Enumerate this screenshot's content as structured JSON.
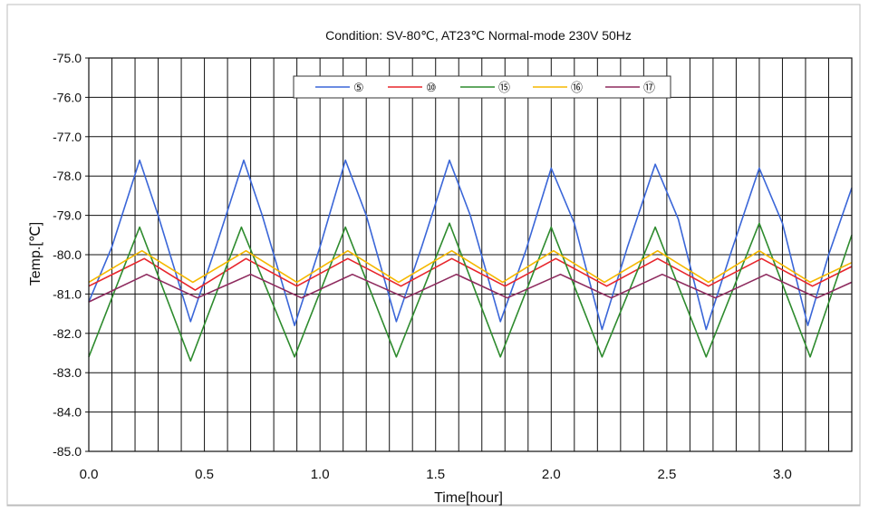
{
  "chart_data": {
    "type": "line",
    "title": "Condition: SV-80℃, AT23℃  Normal-mode   230V 50Hz",
    "xlabel": "Time[hour]",
    "ylabel": "Temp.[℃]",
    "xlim": [
      0.0,
      3.3
    ],
    "ylim": [
      -85.0,
      -75.0
    ],
    "x_ticks": [
      "0.0",
      "0.5",
      "1.0",
      "1.5",
      "2.0",
      "2.5",
      "3.0"
    ],
    "x_tick_values": [
      0,
      0.5,
      1.0,
      1.5,
      2.0,
      2.5,
      3.0
    ],
    "y_ticks": [
      "-75.0",
      "-76.0",
      "-77.0",
      "-78.0",
      "-79.0",
      "-80.0",
      "-81.0",
      "-82.0",
      "-83.0",
      "-84.0",
      "-85.0"
    ],
    "y_tick_values": [
      -75,
      -76,
      -77,
      -78,
      -79,
      -80,
      -81,
      -82,
      -83,
      -84,
      -85
    ],
    "grid": true,
    "legend_position": "top-center",
    "series": [
      {
        "name": "⑤",
        "color": "#3a66d8",
        "x": [
          0.0,
          0.1,
          0.22,
          0.3,
          0.44,
          0.55,
          0.67,
          0.75,
          0.89,
          1.0,
          1.11,
          1.2,
          1.33,
          1.44,
          1.56,
          1.65,
          1.78,
          1.89,
          2.0,
          2.1,
          2.22,
          2.33,
          2.45,
          2.55,
          2.67,
          2.78,
          2.9,
          3.0,
          3.11,
          3.2,
          3.3
        ],
        "values": [
          -81.2,
          -79.8,
          -77.6,
          -79.0,
          -81.7,
          -79.8,
          -77.6,
          -79.0,
          -81.8,
          -79.8,
          -77.6,
          -79.0,
          -81.7,
          -79.8,
          -77.6,
          -79.0,
          -81.7,
          -79.9,
          -77.8,
          -79.2,
          -81.9,
          -79.8,
          -77.7,
          -79.1,
          -81.9,
          -79.9,
          -77.8,
          -79.2,
          -81.8,
          -80.0,
          -78.3
        ]
      },
      {
        "name": "⑩",
        "color": "#e8262c",
        "x": [
          0.0,
          0.24,
          0.46,
          0.68,
          0.9,
          1.12,
          1.35,
          1.57,
          1.8,
          2.02,
          2.24,
          2.46,
          2.68,
          2.91,
          3.13,
          3.3
        ],
        "values": [
          -80.8,
          -80.1,
          -80.9,
          -80.1,
          -80.8,
          -80.1,
          -80.8,
          -80.1,
          -80.8,
          -80.1,
          -80.8,
          -80.1,
          -80.8,
          -80.1,
          -80.8,
          -80.3
        ]
      },
      {
        "name": "⑮",
        "color": "#2e8b2e",
        "x": [
          0.0,
          0.22,
          0.44,
          0.66,
          0.89,
          1.11,
          1.33,
          1.56,
          1.78,
          2.0,
          2.22,
          2.45,
          2.67,
          2.9,
          3.12,
          3.3
        ],
        "values": [
          -82.6,
          -79.3,
          -82.7,
          -79.3,
          -82.6,
          -79.3,
          -82.6,
          -79.2,
          -82.6,
          -79.3,
          -82.6,
          -79.3,
          -82.6,
          -79.2,
          -82.6,
          -79.5
        ]
      },
      {
        "name": "⑯",
        "color": "#f5b800",
        "x": [
          0.0,
          0.23,
          0.45,
          0.68,
          0.9,
          1.12,
          1.34,
          1.57,
          1.79,
          2.01,
          2.23,
          2.46,
          2.68,
          2.9,
          3.12,
          3.3
        ],
        "values": [
          -80.7,
          -79.9,
          -80.7,
          -79.9,
          -80.7,
          -79.9,
          -80.7,
          -79.9,
          -80.7,
          -79.9,
          -80.7,
          -79.9,
          -80.7,
          -79.9,
          -80.7,
          -80.2
        ]
      },
      {
        "name": "⑰",
        "color": "#8e2a5e",
        "x": [
          0.0,
          0.25,
          0.47,
          0.7,
          0.92,
          1.14,
          1.37,
          1.59,
          1.81,
          2.04,
          2.26,
          2.48,
          2.71,
          2.93,
          3.15,
          3.3
        ],
        "values": [
          -81.2,
          -80.5,
          -81.1,
          -80.5,
          -81.1,
          -80.5,
          -81.1,
          -80.5,
          -81.1,
          -80.5,
          -81.1,
          -80.5,
          -81.1,
          -80.5,
          -81.1,
          -80.7
        ]
      }
    ]
  }
}
